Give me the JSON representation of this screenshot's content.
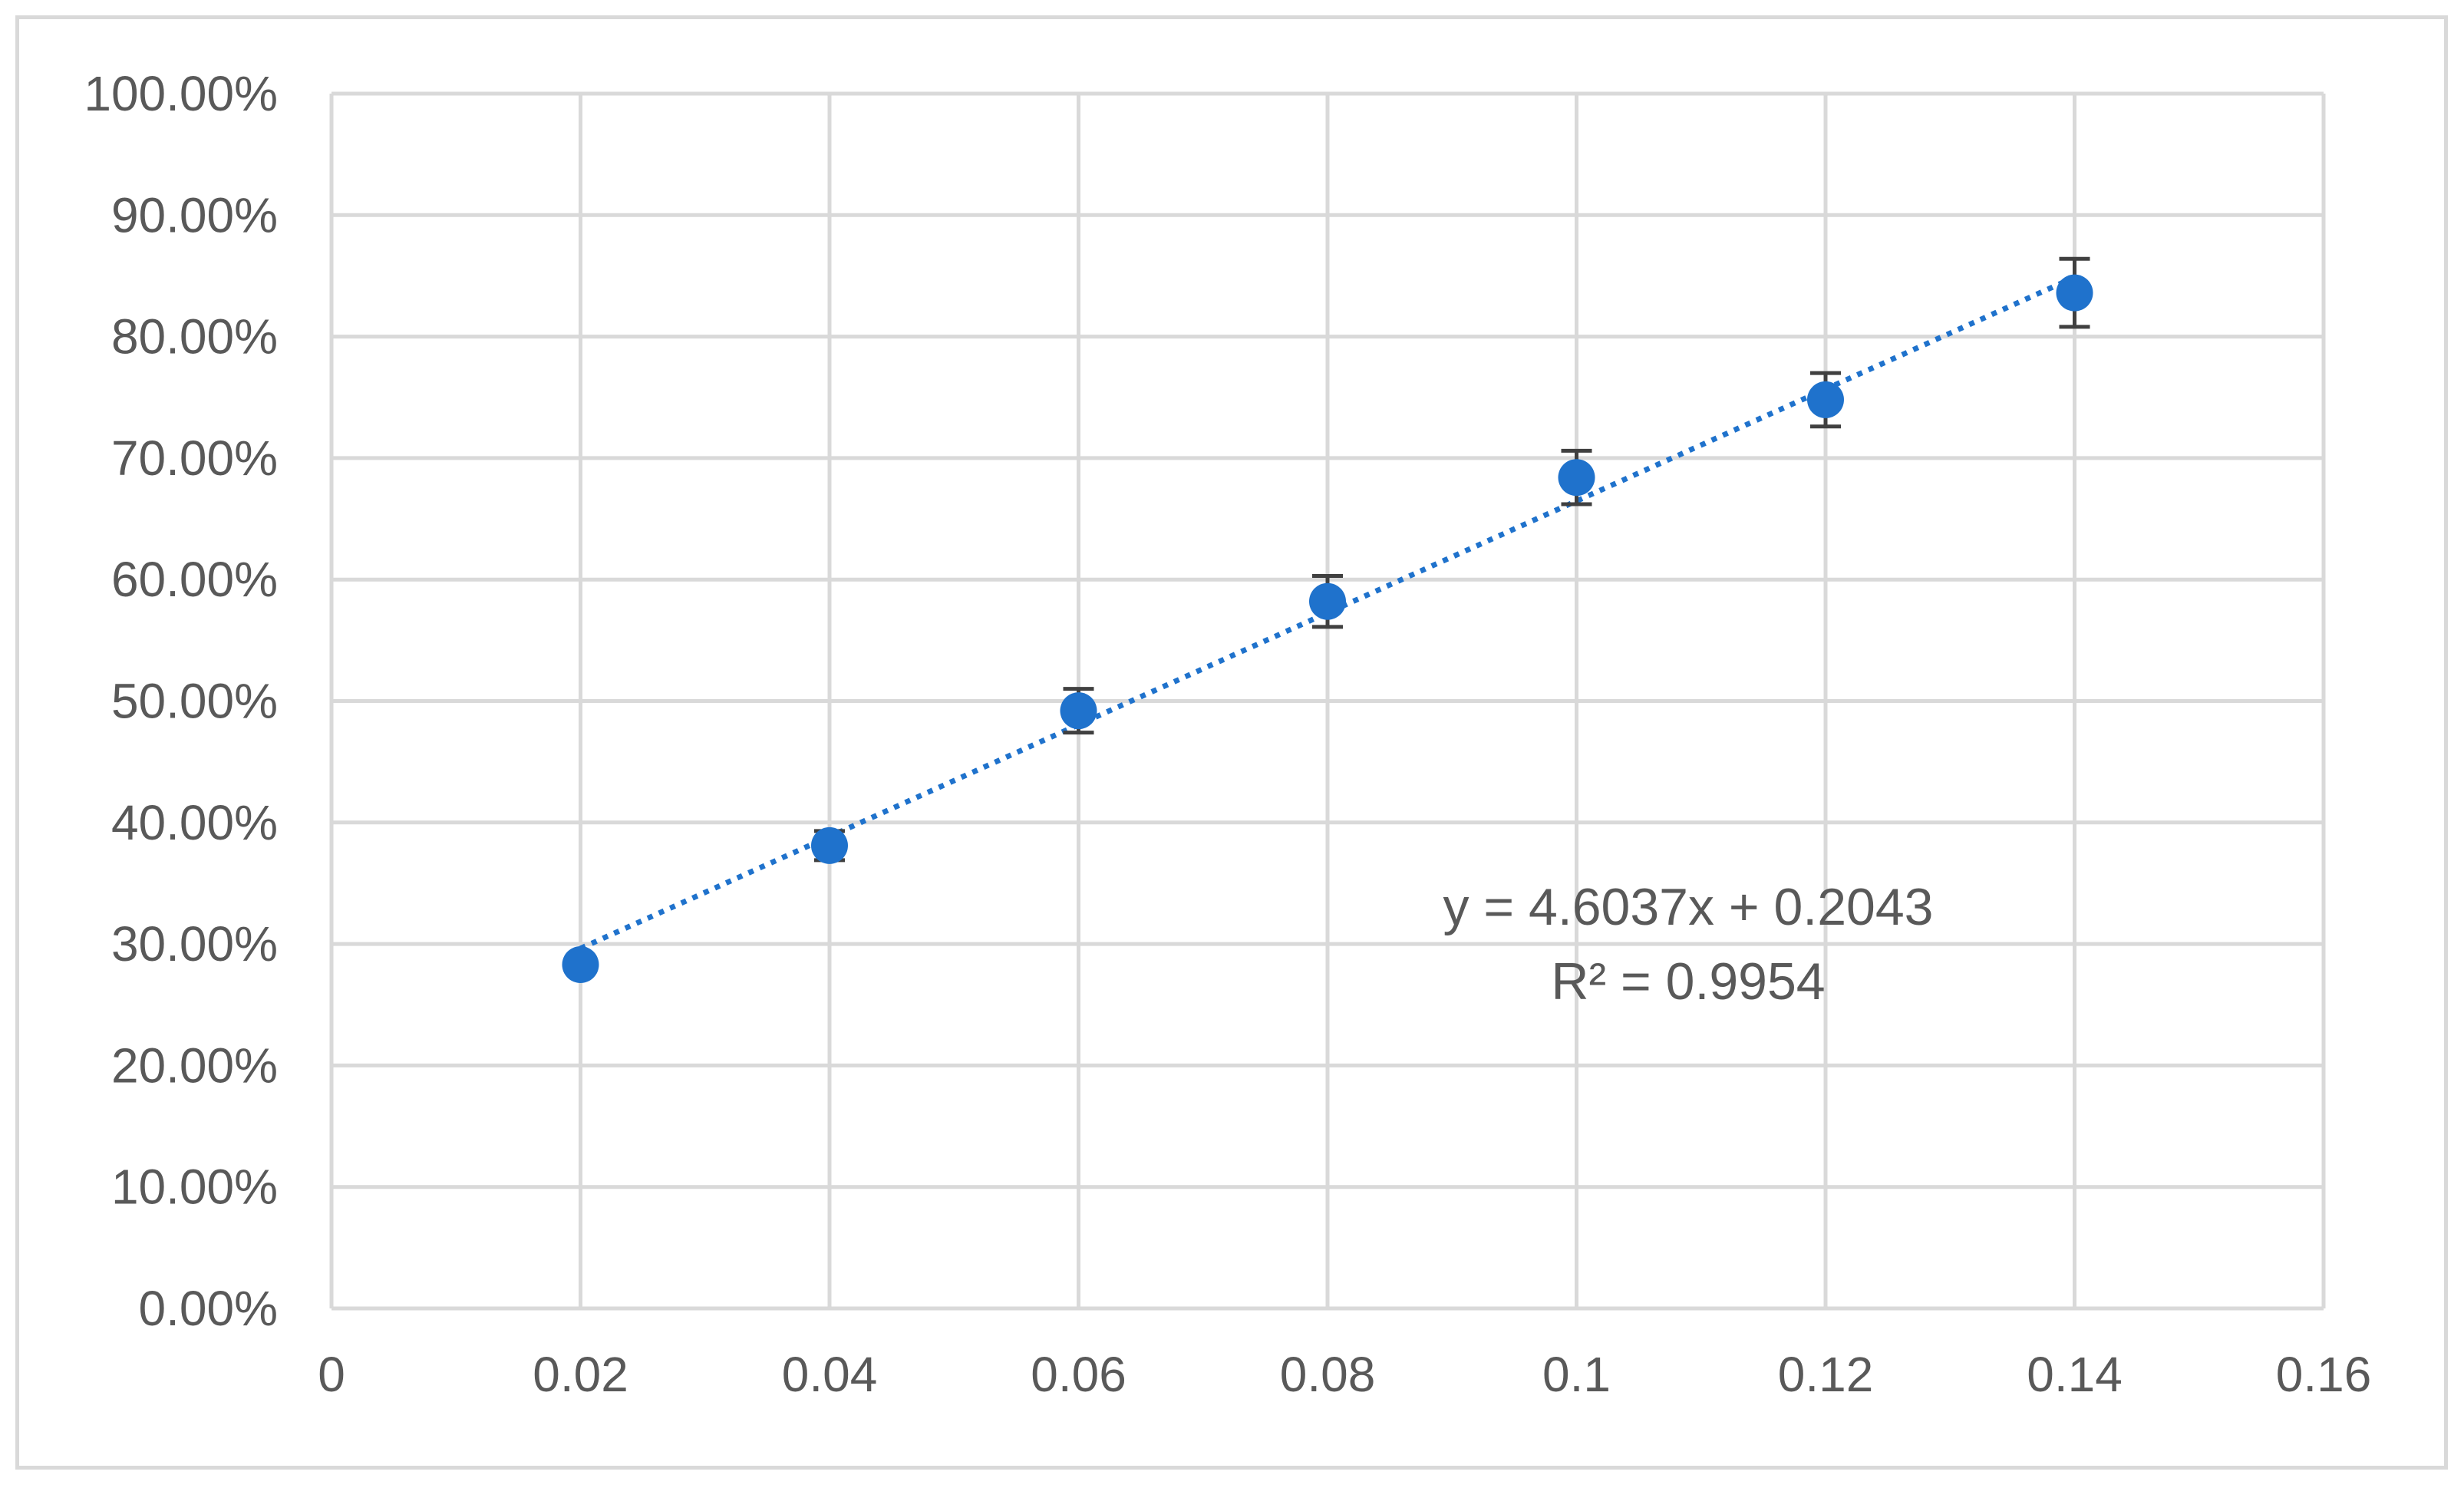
{
  "chart_data": {
    "type": "scatter",
    "title": "",
    "xlabel": "",
    "ylabel": "",
    "xlim": [
      0,
      0.16
    ],
    "ylim": [
      0,
      1.0
    ],
    "x_ticks": [
      0,
      0.02,
      0.04,
      0.06,
      0.08,
      0.1,
      0.12,
      0.14,
      0.16
    ],
    "x_tick_labels": [
      "0",
      "0.02",
      "0.04",
      "0.06",
      "0.08",
      "0.1",
      "0.12",
      "0.14",
      "0.16"
    ],
    "y_ticks": [
      0,
      0.1,
      0.2,
      0.3,
      0.4,
      0.5,
      0.6,
      0.7,
      0.8,
      0.9,
      1.0
    ],
    "y_tick_labels": [
      "0.00%",
      "10.00%",
      "20.00%",
      "30.00%",
      "40.00%",
      "50.00%",
      "60.00%",
      "70.00%",
      "80.00%",
      "90.00%",
      "100.00%"
    ],
    "grid": true,
    "legend": "none",
    "series": [
      {
        "x": [
          0.02,
          0.04,
          0.06,
          0.08,
          0.1,
          0.12,
          0.14
        ],
        "y": [
          0.283,
          0.381,
          0.492,
          0.582,
          0.684,
          0.748,
          0.836
        ],
        "error": [
          0.0,
          0.012,
          0.018,
          0.021,
          0.022,
          0.022,
          0.028
        ],
        "color": "#1f72cc"
      }
    ],
    "trendline": {
      "type": "linear",
      "slope": 4.6037,
      "intercept": 0.2043,
      "style": "dotted",
      "color": "#1f72cc",
      "x_range": [
        0.02,
        0.14
      ]
    },
    "annotations": [
      "y = 4.6037x + 0.2043",
      "R² = 0.9954"
    ],
    "colors": {
      "grid": "#d9d9d9",
      "text": "#595959",
      "error_bar": "#404040",
      "frame": "#d9d9d9"
    }
  }
}
